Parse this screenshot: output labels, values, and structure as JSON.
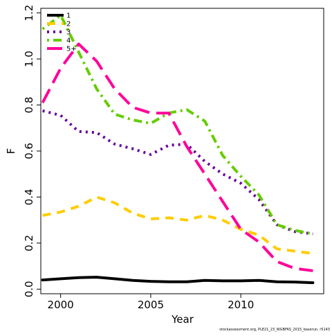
{
  "chart_data": {
    "type": "line",
    "title": "",
    "xlabel": "Year",
    "ylabel": "F",
    "xlim": [
      1998.9,
      2014.6
    ],
    "ylim": [
      -0.02,
      1.22
    ],
    "x_ticks": [
      2000,
      2005,
      2010
    ],
    "y_ticks": [
      0.0,
      0.2,
      0.4,
      0.6,
      0.8,
      1.0,
      1.2
    ],
    "y_tick_labels": [
      "0.0",
      "0.2",
      "0.4",
      "0.6",
      "0.8",
      "1.0",
      "1.2"
    ],
    "grid": false,
    "legend_position": "top-left",
    "x": [
      1999,
      2000,
      2001,
      2002,
      2003,
      2004,
      2005,
      2006,
      2007,
      2008,
      2009,
      2010,
      2011,
      2012,
      2013,
      2014
    ],
    "series": [
      {
        "name": "1",
        "color": "#000000",
        "dash": "solid",
        "values": [
          0.04,
          0.045,
          0.05,
          0.052,
          0.045,
          0.038,
          0.034,
          0.032,
          0.032,
          0.038,
          0.036,
          0.036,
          0.038,
          0.032,
          0.031,
          0.028
        ]
      },
      {
        "name": "2",
        "color": "#FFCC00",
        "dash": "dashed",
        "values": [
          0.32,
          0.335,
          0.36,
          0.4,
          0.375,
          0.33,
          0.305,
          0.31,
          0.3,
          0.32,
          0.3,
          0.26,
          0.235,
          0.175,
          0.165,
          0.155
        ]
      },
      {
        "name": "3",
        "color": "#660099",
        "dash": "dotted",
        "values": [
          0.775,
          0.755,
          0.685,
          0.68,
          0.63,
          0.61,
          0.585,
          0.625,
          0.63,
          0.555,
          0.5,
          0.46,
          0.39,
          0.28,
          0.25,
          0.24
        ]
      },
      {
        "name": "4",
        "color": "#66CC00",
        "dash": "dotdash",
        "values": [
          1.13,
          1.19,
          1.03,
          0.87,
          0.76,
          0.735,
          0.72,
          0.765,
          0.78,
          0.73,
          0.58,
          0.49,
          0.41,
          0.28,
          0.255,
          0.24
        ]
      },
      {
        "name": "5+",
        "color": "#FF0099",
        "dash": "longdash",
        "values": [
          0.81,
          0.96,
          1.065,
          0.99,
          0.87,
          0.79,
          0.765,
          0.765,
          0.62,
          0.5,
          0.38,
          0.26,
          0.205,
          0.12,
          0.09,
          0.08
        ]
      }
    ],
    "annotations": [
      "stockassessment.org, PLE21_23_WGBFAS_2015_baserun, r5143"
    ]
  }
}
